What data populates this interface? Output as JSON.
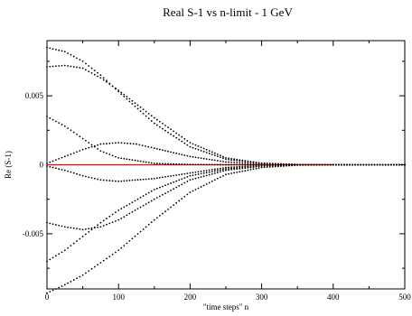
{
  "chart_data": {
    "type": "scatter",
    "title": "Real S-1 vs n-limit - 1 GeV",
    "xlabel": "\"time steps\" n",
    "ylabel": "Re (S-1)",
    "xlim": [
      0,
      500
    ],
    "ylim": [
      -0.009,
      0.009
    ],
    "x_ticks": [
      0,
      100,
      200,
      300,
      400,
      500
    ],
    "x_tick_labels": [
      "0",
      "100",
      "200",
      "300",
      "400",
      "500"
    ],
    "y_ticks": [
      -0.005,
      0,
      0.005
    ],
    "y_tick_labels": [
      "-0.005",
      "0",
      "0.005"
    ],
    "grid": false,
    "legend": "none",
    "colors": {
      "points": "#000000",
      "reference_line": "#ff0000",
      "axes": "#000000"
    },
    "reference_line": {
      "y": 0,
      "x_range": [
        0,
        400
      ]
    },
    "series": [
      {
        "x": [
          0,
          25,
          50,
          75,
          100,
          150,
          200,
          250,
          300,
          350,
          400,
          450,
          500
        ],
        "values": [
          0.0085,
          0.0082,
          0.0075,
          0.0065,
          0.0053,
          0.003,
          0.0013,
          0.0004,
          0.0001,
          2e-05,
          0.0,
          0.0,
          0.0
        ]
      },
      {
        "x": [
          0,
          25,
          50,
          75,
          100,
          150,
          200,
          250,
          300,
          350,
          400,
          450,
          500
        ],
        "values": [
          0.0071,
          0.0072,
          0.007,
          0.0063,
          0.0054,
          0.0034,
          0.0016,
          0.0005,
          0.00012,
          2e-05,
          0.0,
          0.0,
          0.0
        ]
      },
      {
        "x": [
          0,
          25,
          50,
          75,
          100,
          150,
          200,
          250,
          300,
          350,
          400,
          450,
          500
        ],
        "values": [
          0.0035,
          0.0028,
          0.0019,
          0.001,
          0.0005,
          0.0001,
          2e-05,
          0.0,
          0.0,
          0.0,
          0.0,
          0.0,
          0.0
        ]
      },
      {
        "x": [
          0,
          25,
          50,
          75,
          100,
          125,
          150,
          200,
          250,
          300,
          350,
          400,
          450,
          500
        ],
        "values": [
          0.0001,
          0.0006,
          0.0011,
          0.0015,
          0.0016,
          0.0015,
          0.0012,
          0.0006,
          0.0002,
          5e-05,
          0.0,
          0.0,
          0.0,
          0.0
        ]
      },
      {
        "x": [
          0,
          25,
          50,
          75,
          100,
          150,
          200,
          250,
          300,
          350,
          400,
          450,
          500
        ],
        "values": [
          -0.0001,
          -0.0004,
          -0.0008,
          -0.0011,
          -0.0012,
          -0.001,
          -0.0006,
          -0.0002,
          -5e-05,
          0.0,
          0.0,
          0.0,
          0.0
        ]
      },
      {
        "x": [
          0,
          25,
          50,
          75,
          100,
          150,
          200,
          250,
          300,
          350,
          400,
          450,
          500
        ],
        "values": [
          -0.0042,
          -0.0045,
          -0.0047,
          -0.0045,
          -0.004,
          -0.0025,
          -0.0011,
          -0.0004,
          -0.0001,
          0.0,
          0.0,
          0.0,
          0.0
        ]
      },
      {
        "x": [
          0,
          25,
          50,
          75,
          100,
          150,
          200,
          250,
          300,
          350,
          400,
          450,
          500
        ],
        "values": [
          -0.007,
          -0.0062,
          -0.0052,
          -0.0042,
          -0.0033,
          -0.0018,
          -0.0008,
          -0.0003,
          -0.0001,
          0.0,
          0.0,
          0.0,
          0.0
        ]
      },
      {
        "x": [
          0,
          25,
          50,
          75,
          100,
          150,
          200,
          250,
          300,
          350,
          400,
          450,
          500
        ],
        "values": [
          -0.0093,
          -0.0087,
          -0.008,
          -0.0071,
          -0.0062,
          -0.004,
          -0.002,
          -0.0007,
          -0.0002,
          -3e-05,
          0.0,
          0.0,
          0.0
        ]
      }
    ]
  }
}
